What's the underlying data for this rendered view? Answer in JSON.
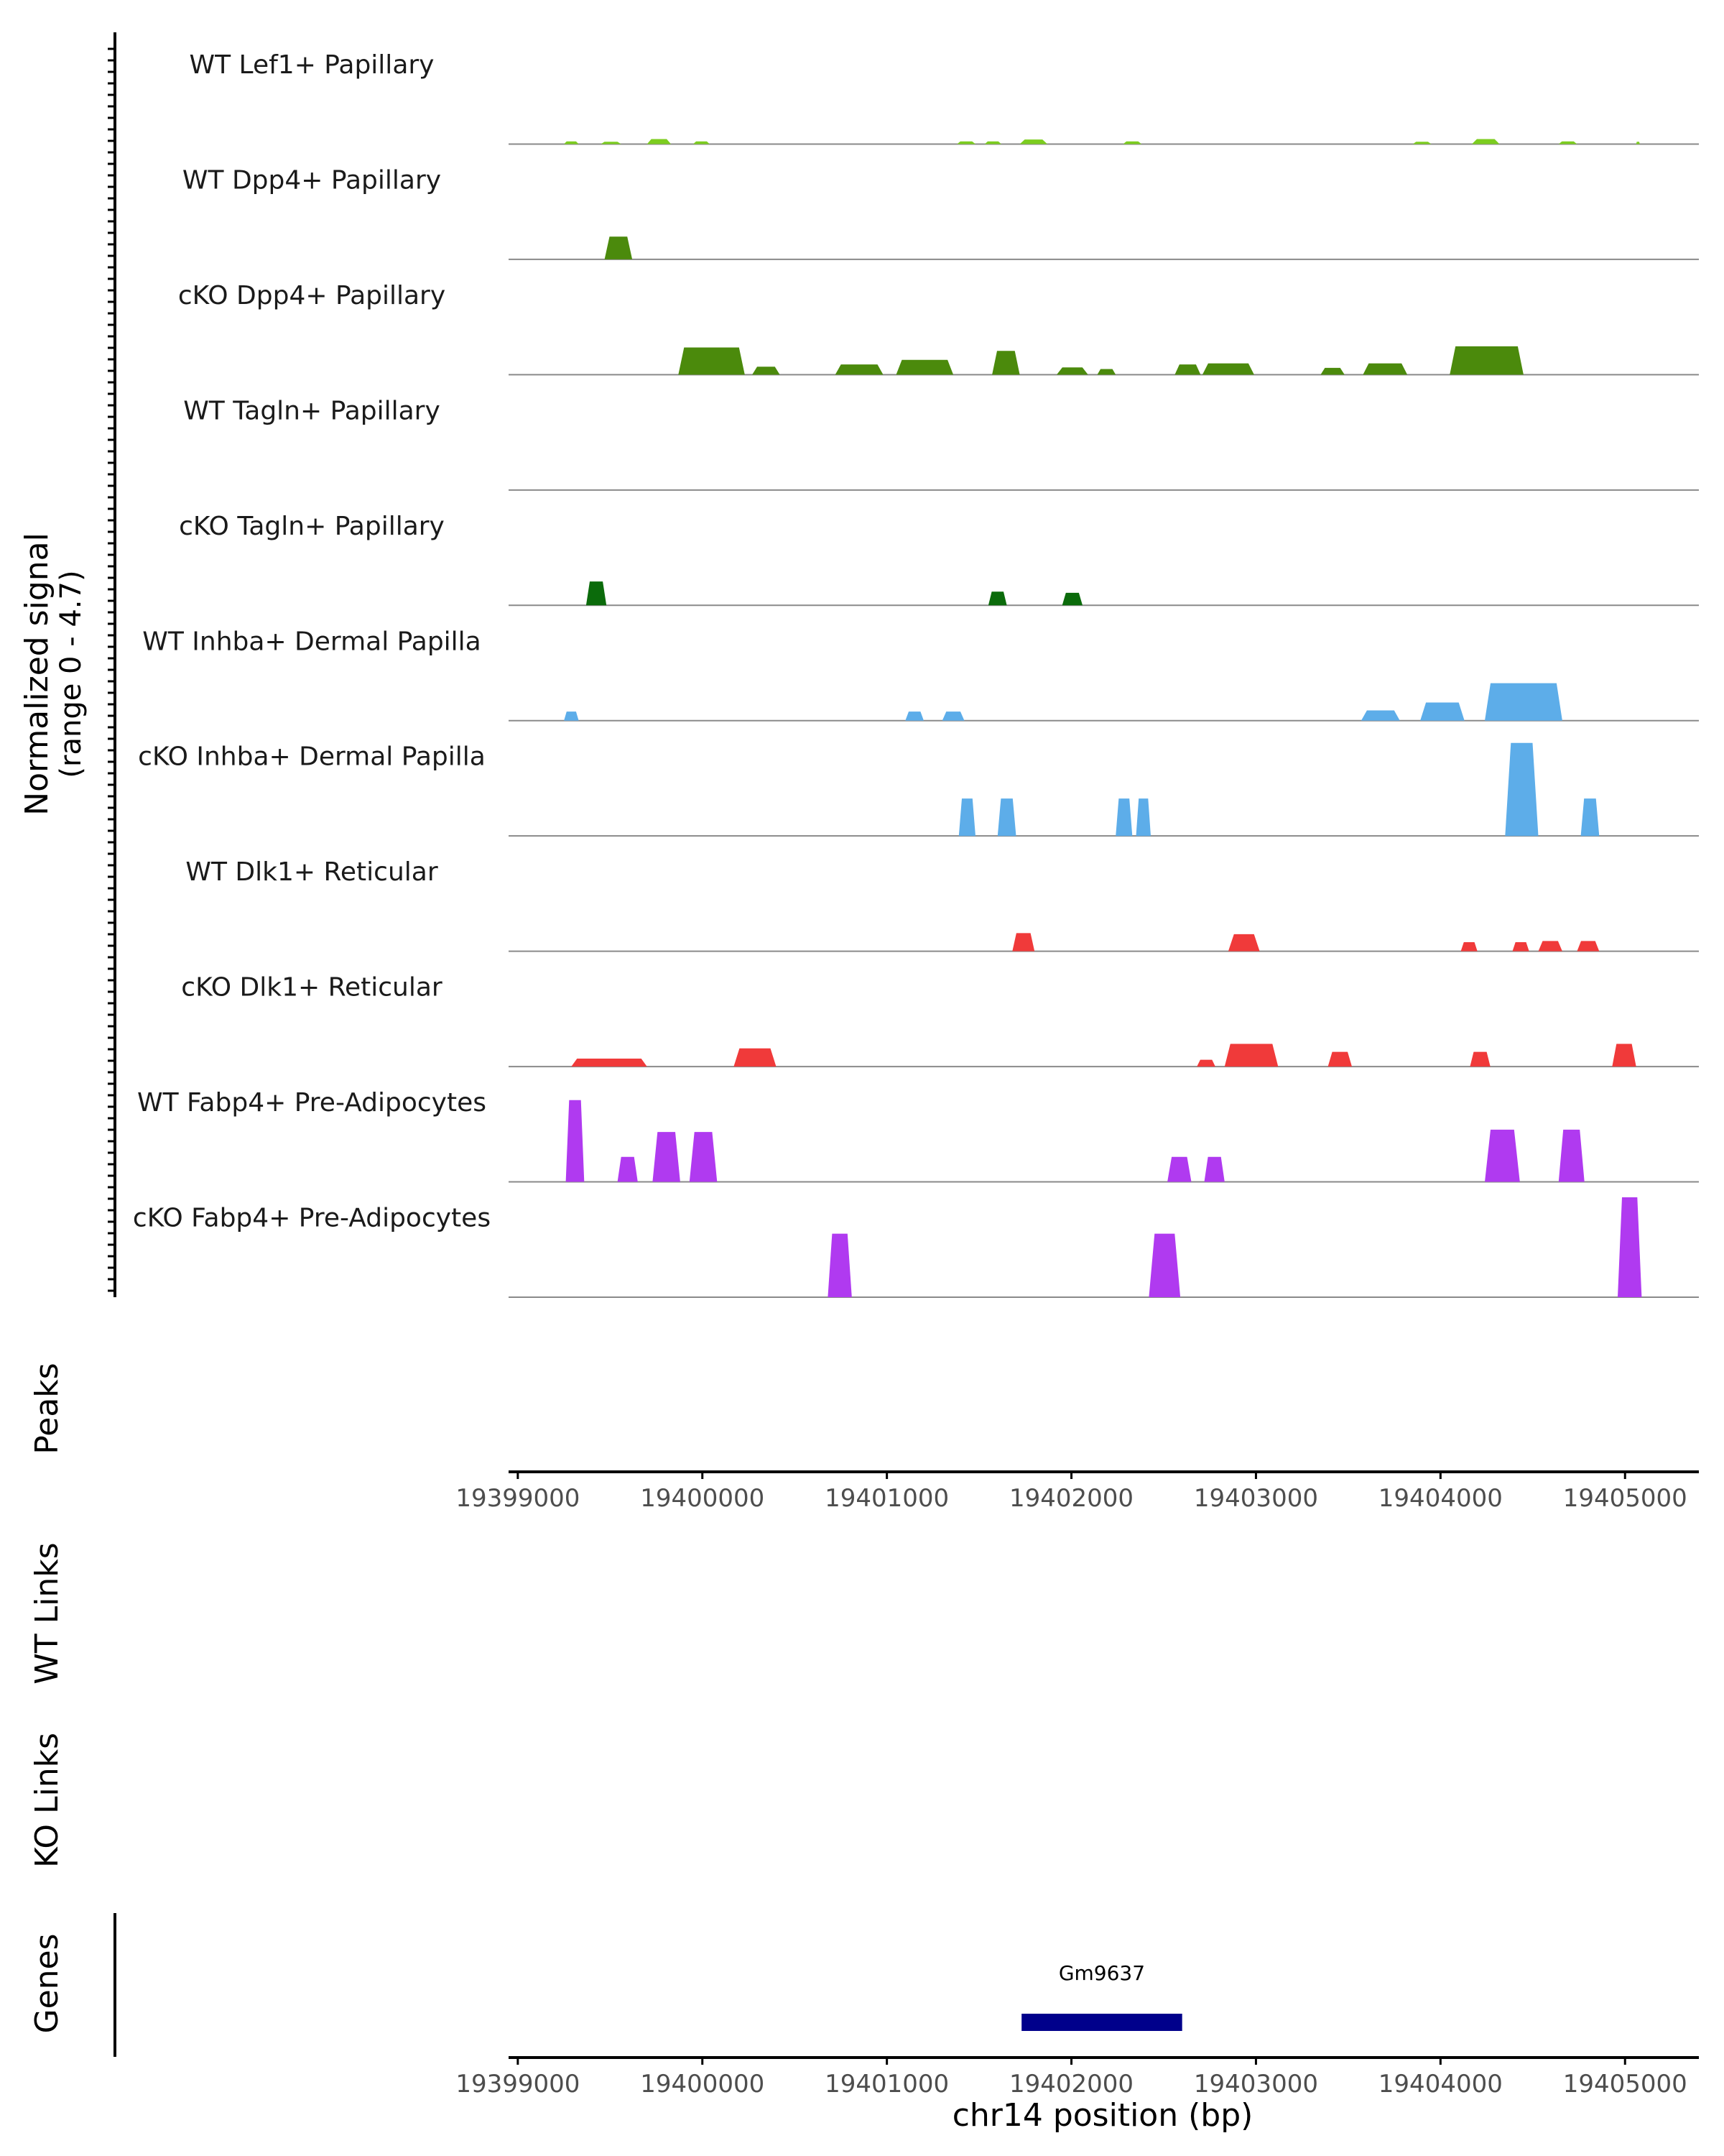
{
  "chart_data": {
    "type": "area",
    "title": "",
    "chromosome": "chr14",
    "xlabel": "chr14 position (bp)",
    "xlim": [
      19398950,
      19405400
    ],
    "xticks": [
      19399000,
      19400000,
      19401000,
      19402000,
      19403000,
      19404000,
      19405000
    ],
    "xtick_labels": [
      "19399000",
      "19400000",
      "19401000",
      "19402000",
      "19403000",
      "19404000",
      "19405000"
    ],
    "ylabel_line1": "Normalized signal",
    "ylabel_line2": "(range 0 - 4.7)",
    "ylim": [
      0,
      4.7
    ],
    "panel_labels": {
      "peaks": "Peaks",
      "wt_links": "WT Links",
      "ko_links": "KO Links",
      "genes": "Genes"
    },
    "tracks": [
      {
        "name": "WT Lef1+ Papillary",
        "color": "#7CCD1F",
        "peaks": [
          [
            19399250,
            19399330,
            0.12
          ],
          [
            19399450,
            19399560,
            0.1
          ],
          [
            19399700,
            19399830,
            0.22
          ],
          [
            19399950,
            19400040,
            0.12
          ],
          [
            19401380,
            19401480,
            0.12
          ],
          [
            19401530,
            19401620,
            0.12
          ],
          [
            19401720,
            19401870,
            0.2
          ],
          [
            19402280,
            19402380,
            0.12
          ],
          [
            19403850,
            19403950,
            0.1
          ],
          [
            19404170,
            19404320,
            0.22
          ],
          [
            19404640,
            19404740,
            0.12
          ],
          [
            19405060,
            19405080,
            0.1
          ]
        ]
      },
      {
        "name": "WT Dpp4+ Papillary",
        "color": "#4B8A0C",
        "peaks": [
          [
            19399470,
            19399620,
            1.0
          ]
        ]
      },
      {
        "name": "cKO Dpp4+ Papillary",
        "color": "#4B8A0C",
        "peaks": [
          [
            19399870,
            19400230,
            1.2
          ],
          [
            19400270,
            19400420,
            0.35
          ],
          [
            19400720,
            19400980,
            0.45
          ],
          [
            19401050,
            19401360,
            0.65
          ],
          [
            19401570,
            19401720,
            1.05
          ],
          [
            19401920,
            19402090,
            0.32
          ],
          [
            19402140,
            19402240,
            0.25
          ],
          [
            19402560,
            19402700,
            0.45
          ],
          [
            19402710,
            19402990,
            0.5
          ],
          [
            19403350,
            19403480,
            0.3
          ],
          [
            19403580,
            19403820,
            0.5
          ],
          [
            19404050,
            19404450,
            1.25
          ]
        ]
      },
      {
        "name": "WT Tagln+ Papillary",
        "color": "#0B6B0B",
        "peaks": []
      },
      {
        "name": "cKO Tagln+ Papillary",
        "color": "#0B6B0B",
        "peaks": [
          [
            19399370,
            19399480,
            1.05
          ],
          [
            19401550,
            19401650,
            0.6
          ],
          [
            19401950,
            19402060,
            0.55
          ]
        ]
      },
      {
        "name": "WT Inhba+ Dermal Papilla",
        "color": "#5DADE9",
        "peaks": [
          [
            19399250,
            19399330,
            0.4
          ],
          [
            19401100,
            19401200,
            0.4
          ],
          [
            19401300,
            19401420,
            0.4
          ],
          [
            19403570,
            19403780,
            0.45
          ],
          [
            19403890,
            19404130,
            0.8
          ],
          [
            19404240,
            19404660,
            1.65
          ]
        ]
      },
      {
        "name": "cKO Inhba+ Dermal Papilla",
        "color": "#5DADE9",
        "peaks": [
          [
            19401390,
            19401480,
            1.65
          ],
          [
            19401600,
            19401700,
            1.65
          ],
          [
            19402240,
            19402330,
            1.65
          ],
          [
            19402350,
            19402430,
            1.65
          ],
          [
            19404350,
            19404530,
            4.1
          ],
          [
            19404760,
            19404860,
            1.65
          ]
        ]
      },
      {
        "name": "WT Dlk1+ Reticular",
        "color": "#F03A3A",
        "peaks": [
          [
            19401680,
            19401800,
            0.8
          ],
          [
            19402850,
            19403020,
            0.75
          ],
          [
            19404110,
            19404200,
            0.4
          ],
          [
            19404390,
            19404480,
            0.4
          ],
          [
            19404530,
            19404660,
            0.45
          ],
          [
            19404740,
            19404860,
            0.45
          ]
        ]
      },
      {
        "name": "cKO Dlk1+ Reticular",
        "color": "#F03A3A",
        "peaks": [
          [
            19399290,
            19399700,
            0.35
          ],
          [
            19400170,
            19400400,
            0.8
          ],
          [
            19402680,
            19402780,
            0.3
          ],
          [
            19402830,
            19403120,
            1.0
          ],
          [
            19403390,
            19403520,
            0.65
          ],
          [
            19404160,
            19404270,
            0.65
          ],
          [
            19404930,
            19405060,
            1.0
          ]
        ]
      },
      {
        "name": "WT Fabp4+ Pre-Adipocytes",
        "color": "#B03AF0",
        "peaks": [
          [
            19399260,
            19399360,
            3.6
          ],
          [
            19399540,
            19399650,
            1.1
          ],
          [
            19399730,
            19399880,
            2.2
          ],
          [
            19399930,
            19400080,
            2.2
          ],
          [
            19402520,
            19402650,
            1.1
          ],
          [
            19402720,
            19402830,
            1.1
          ],
          [
            19404240,
            19404430,
            2.3
          ],
          [
            19404640,
            19404780,
            2.3
          ]
        ]
      },
      {
        "name": "cKO Fabp4+ Pre-Adipocytes",
        "color": "#B03AF0",
        "peaks": [
          [
            19400680,
            19400810,
            2.8
          ],
          [
            19402420,
            19402590,
            2.8
          ],
          [
            19404960,
            19405090,
            4.4
          ]
        ]
      }
    ],
    "genes": [
      {
        "name": "Gm9637",
        "start": 19401730,
        "end": 19402600,
        "color": "#00008B"
      }
    ]
  }
}
